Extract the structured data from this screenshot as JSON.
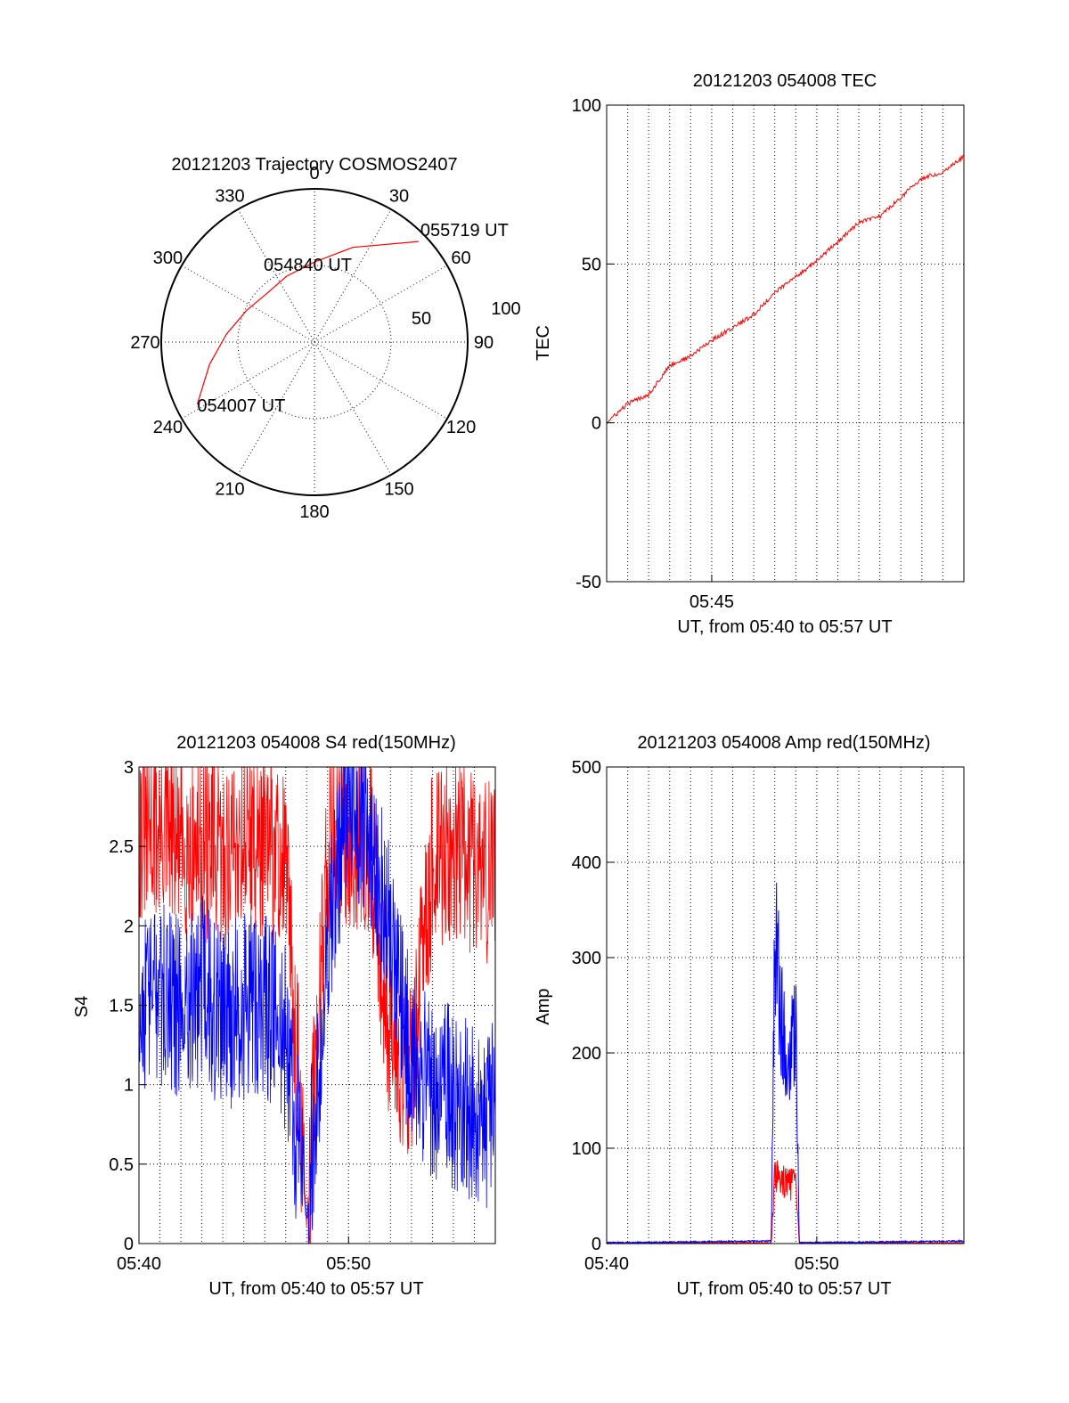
{
  "chart_data": [
    {
      "type": "polar",
      "title": "20121203 Trajectory COSMOS2407",
      "angle_labels": [
        "0",
        "30",
        "60",
        "90",
        "120",
        "150",
        "180",
        "210",
        "240",
        "270",
        "300",
        "330"
      ],
      "radial_labels": [
        "50",
        "100"
      ],
      "series": [
        {
          "color": "#ff0000",
          "points": [
            {
              "azimuth": 242,
              "elevation": 12
            },
            {
              "azimuth": 258,
              "elevation": 27
            },
            {
              "azimuth": 275,
              "elevation": 38
            },
            {
              "azimuth": 295,
              "elevation": 46
            },
            {
              "azimuth": 315,
              "elevation": 50
            },
            {
              "azimuth": 337,
              "elevation": 48
            },
            {
              "azimuth": 0,
              "elevation": 43
            },
            {
              "azimuth": 22,
              "elevation": 30
            },
            {
              "azimuth": 46,
              "elevation": 5
            }
          ]
        }
      ],
      "annotations": [
        {
          "text": "055719 UT",
          "azimuth": 46,
          "elevation": 5
        },
        {
          "text": "054840 UT",
          "azimuth": 0,
          "elevation": 45
        },
        {
          "text": "054007 UT",
          "azimuth": 242,
          "elevation": 12
        }
      ]
    },
    {
      "type": "line",
      "title": "20121203 054008 TEC",
      "xlabel": "UT, from 05:40 to 05:57 UT",
      "ylabel": "TEC",
      "xlim": [
        "05:40",
        "05:57"
      ],
      "ylim": [
        -50,
        100
      ],
      "yticks": [
        "100",
        "50",
        "0",
        "-50"
      ],
      "xticks": [
        "05:45"
      ],
      "grid": true,
      "series": [
        {
          "color": "#ff0000",
          "x": [
            "05:40",
            "05:41",
            "05:42",
            "05:43",
            "05:44",
            "05:45",
            "05:46",
            "05:47",
            "05:48",
            "05:49",
            "05:50",
            "05:51",
            "05:52",
            "05:53",
            "05:54",
            "05:55",
            "05:56",
            "05:57"
          ],
          "values": [
            0,
            6,
            9,
            18,
            21,
            26,
            30,
            34,
            41,
            46,
            51,
            57,
            63,
            65,
            71,
            77,
            79,
            84
          ]
        }
      ]
    },
    {
      "type": "line",
      "title": "20121203 054008 S4 red(150MHz)",
      "xlabel": "UT, from 05:40 to 05:57 UT",
      "ylabel": "S4",
      "xlim": [
        "05:40",
        "05:57"
      ],
      "ylim": [
        0,
        3
      ],
      "yticks": [
        "3",
        "2.5",
        "2",
        "1.5",
        "1",
        "0.5",
        "0"
      ],
      "xticks": [
        "05:40",
        "05:50"
      ],
      "grid": true,
      "series": [
        {
          "color": "#ff0000",
          "x": [
            "05:40",
            "05:41",
            "05:42",
            "05:43",
            "05:44",
            "05:45",
            "05:46",
            "05:47",
            "05:48",
            "05:49",
            "05:50",
            "05:51",
            "05:52",
            "05:53",
            "05:54",
            "05:55",
            "05:56",
            "05:57"
          ],
          "values": [
            2.6,
            2.6,
            2.5,
            2.5,
            2.4,
            2.6,
            2.5,
            2.4,
            0.12,
            2.5,
            2.6,
            2.5,
            1.3,
            1.1,
            2.4,
            2.5,
            2.4,
            2.3
          ]
        },
        {
          "color": "#0000ff",
          "x": [
            "05:40",
            "05:41",
            "05:42",
            "05:43",
            "05:44",
            "05:45",
            "05:46",
            "05:47",
            "05:48",
            "05:49",
            "05:50",
            "05:51",
            "05:52",
            "05:53",
            "05:54",
            "05:55",
            "05:56",
            "05:57"
          ],
          "values": [
            1.5,
            1.6,
            1.5,
            1.6,
            1.4,
            1.5,
            1.5,
            1.3,
            0.15,
            1.8,
            2.9,
            2.5,
            1.9,
            1.1,
            1.0,
            0.9,
            0.85,
            0.8
          ]
        }
      ]
    },
    {
      "type": "line",
      "title": "20121203 054008 Amp red(150MHz)",
      "xlabel": "UT, from 05:40 to 05:57 UT",
      "ylabel": "Amp",
      "xlim": [
        "05:40",
        "05:57"
      ],
      "ylim": [
        0,
        500
      ],
      "yticks": [
        "500",
        "400",
        "300",
        "200",
        "100",
        "0"
      ],
      "xticks": [
        "05:40",
        "05:50"
      ],
      "grid": true,
      "series": [
        {
          "color": "#ff0000",
          "x": [
            "05:40",
            "05:47:50",
            "05:48",
            "05:48:30",
            "05:49",
            "05:49:10",
            "05:57"
          ],
          "values": [
            0,
            0,
            70,
            65,
            60,
            0,
            0
          ]
        },
        {
          "color": "#0000ff",
          "x": [
            "05:40",
            "05:47:50",
            "05:48",
            "05:48:20",
            "05:48:40",
            "05:49",
            "05:49:10",
            "05:57"
          ],
          "values": [
            0,
            2,
            330,
            230,
            200,
            230,
            0,
            2
          ]
        }
      ]
    }
  ]
}
